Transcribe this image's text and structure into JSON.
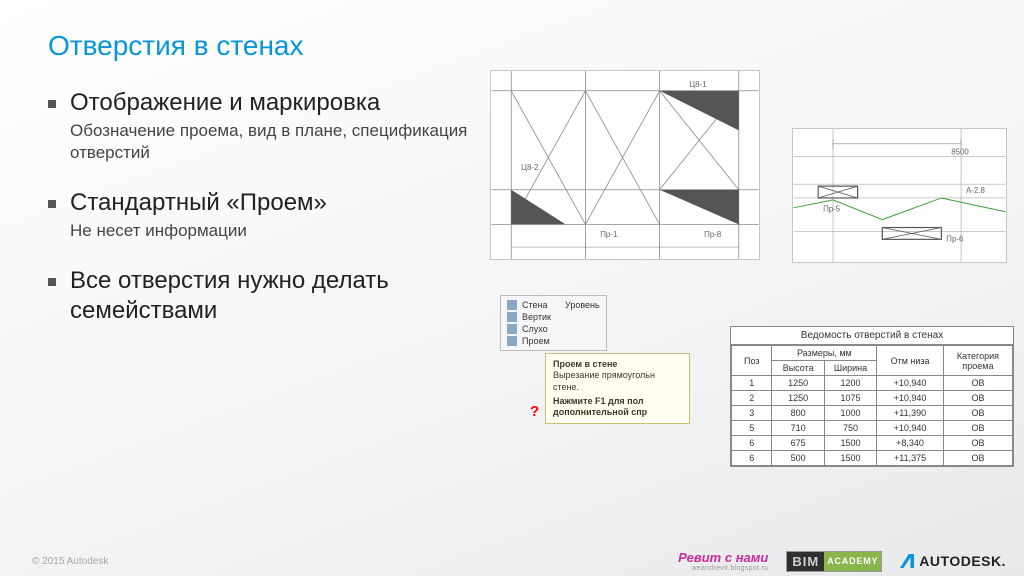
{
  "colors": {
    "title": "#0696d7",
    "text": "#222222",
    "subtext": "#555555"
  },
  "title": "Отверстия в стенах",
  "bullets": [
    {
      "main": "Отображение и маркировка",
      "sub": "Обозначение проема, вид в плане, спецификация отверстий"
    },
    {
      "main": "Стандартный «Проем»",
      "sub": "Не несет информации"
    },
    {
      "main": "Все отверстия нужно делать семействами",
      "sub": ""
    }
  ],
  "drawing1": {
    "labels": [
      "Ц8-1",
      "Ц8-2",
      "Пр-1",
      "Пр-8"
    ]
  },
  "drawing2": {
    "dim_label": "8500",
    "axis_label": "А-2.8",
    "tag1": "Пр-5",
    "tag2": "Пр-6"
  },
  "tooltip": {
    "menu_items": [
      "Стена",
      "Вертик",
      "Слухо",
      "Проем"
    ],
    "side_items": [
      "Уровень"
    ],
    "title": "Проем в стене",
    "line1": "Вырезание прямоугольн",
    "line2": "стене.",
    "hint": "Нажмите F1 для пол",
    "hint2": "дополнительной спр"
  },
  "schedule": {
    "caption": "Ведомость отверстий в стенах",
    "header_poz": "Поз",
    "header_dim_group": "Размеры, мм",
    "header_h": "Высота",
    "header_w": "Ширина",
    "header_otm": "Отм низа",
    "header_kat": "Категория проема",
    "rows": [
      {
        "poz": "1",
        "h": "1250",
        "w": "1200",
        "otm": "+10,940",
        "kat": "ОВ"
      },
      {
        "poz": "2",
        "h": "1250",
        "w": "1075",
        "otm": "+10,940",
        "kat": "ОВ"
      },
      {
        "poz": "3",
        "h": "800",
        "w": "1000",
        "otm": "+11,390",
        "kat": "ОВ"
      },
      {
        "poz": "5",
        "h": "710",
        "w": "750",
        "otm": "+10,940",
        "kat": "ОВ"
      },
      {
        "poz": "6",
        "h": "675",
        "w": "1500",
        "otm": "+8,340",
        "kat": "ОВ"
      },
      {
        "poz": "6",
        "h": "500",
        "w": "1500",
        "otm": "+11,375",
        "kat": "ОВ"
      }
    ]
  },
  "footer": {
    "copy": "© 2015 Autodesk",
    "revit_main": "Ревит с нами",
    "revit_sub": "weandrevit.blogspot.ru",
    "bim_a": "BIM",
    "bim_b": "ACADEMY",
    "adesk": "AUTODESK."
  }
}
